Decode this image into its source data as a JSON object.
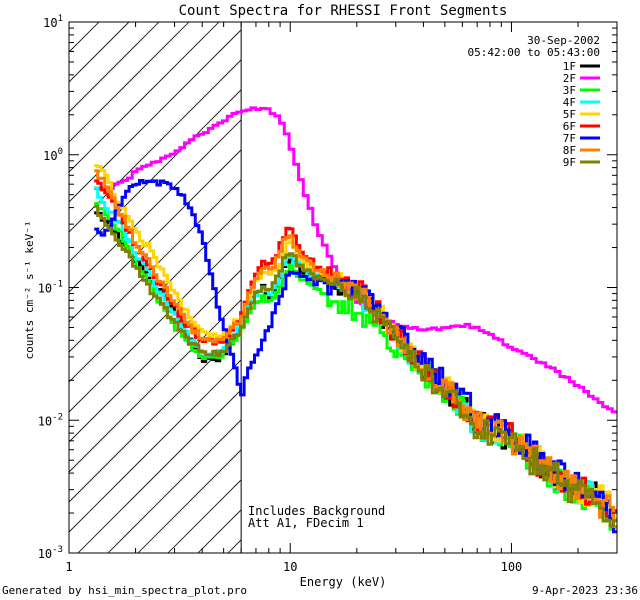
{
  "chart_data": {
    "type": "line",
    "title": "Count Spectra for RHESSI Front Segments",
    "xlabel": "Energy (keV)",
    "ylabel": "counts cm⁻² s⁻¹ keV⁻¹",
    "xscale": "log",
    "yscale": "log",
    "xlim": [
      1,
      300
    ],
    "ylim": [
      0.001,
      10
    ],
    "x_ticks": [
      {
        "value": 1,
        "label": "1"
      },
      {
        "value": 10,
        "label": "10"
      },
      {
        "value": 100,
        "label": "100"
      }
    ],
    "y_ticks": [
      {
        "value": 0.001,
        "base": "10",
        "exp": "-3"
      },
      {
        "value": 0.01,
        "base": "10",
        "exp": "-2"
      },
      {
        "value": 0.1,
        "base": "10",
        "exp": "-1"
      },
      {
        "value": 1,
        "base": "10",
        "exp": "0"
      },
      {
        "value": 10,
        "base": "10",
        "exp": "1"
      }
    ],
    "hatched_region": {
      "from_keV": 1,
      "to_keV": 6,
      "boundary_keV": 6
    },
    "date": "30-Sep-2002",
    "time_range": "05:42:00 to 05:43:00",
    "annotations": [
      "Includes Background",
      "Att A1, FDecim  1"
    ],
    "legend_position": "top-right",
    "series": [
      {
        "name": "1F",
        "color": "#000000",
        "style": "trace",
        "x": [
          1.3,
          1.45,
          1.6,
          1.8,
          2.0,
          2.3,
          2.6,
          3.0,
          3.5,
          4.0,
          4.5,
          5.0,
          5.5,
          6.0,
          6.5,
          7.0,
          7.5,
          8.0,
          8.5,
          9.0,
          9.5,
          10.0,
          10.5,
          11.5,
          13,
          15,
          17,
          20,
          25,
          30,
          40,
          50,
          60,
          70,
          80,
          100,
          120,
          150,
          200,
          250,
          280,
          300
        ],
        "y": [
          0.38,
          0.33,
          0.27,
          0.2,
          0.16,
          0.12,
          0.095,
          0.07,
          0.04,
          0.029,
          0.028,
          0.031,
          0.04,
          0.048,
          0.07,
          0.09,
          0.1,
          0.085,
          0.095,
          0.11,
          0.15,
          0.17,
          0.15,
          0.13,
          0.12,
          0.11,
          0.1,
          0.09,
          0.065,
          0.042,
          0.025,
          0.017,
          0.013,
          0.0095,
          0.0085,
          0.0072,
          0.0055,
          0.004,
          0.003,
          0.0025,
          0.002,
          0.0017
        ]
      },
      {
        "name": "2F",
        "color": "#ff00ff",
        "style": "smooth",
        "x": [
          1.3,
          1.45,
          1.6,
          1.8,
          2.0,
          2.3,
          2.6,
          3.0,
          3.5,
          4.0,
          4.5,
          5.0,
          5.5,
          6.0,
          6.5,
          7.0,
          7.5,
          8.0,
          8.5,
          9.0,
          9.5,
          10.0,
          10.5,
          11.5,
          13,
          15,
          17,
          20,
          25,
          30,
          40,
          50,
          60,
          70,
          80,
          100,
          120,
          150,
          200,
          250,
          280,
          300
        ],
        "y": [
          0.56,
          0.56,
          0.58,
          0.64,
          0.74,
          0.84,
          0.92,
          1.05,
          1.25,
          1.45,
          1.62,
          1.8,
          2.0,
          2.15,
          2.22,
          2.24,
          2.22,
          2.15,
          2.05,
          1.85,
          1.55,
          1.2,
          0.9,
          0.55,
          0.3,
          0.17,
          0.11,
          0.08,
          0.06,
          0.052,
          0.048,
          0.05,
          0.052,
          0.05,
          0.045,
          0.035,
          0.03,
          0.025,
          0.018,
          0.014,
          0.012,
          0.011
        ]
      },
      {
        "name": "3F",
        "color": "#00ff00",
        "style": "trace",
        "x": [
          1.3,
          1.45,
          1.6,
          1.8,
          2.0,
          2.3,
          2.6,
          3.0,
          3.5,
          4.0,
          4.5,
          5.0,
          5.5,
          6.0,
          6.5,
          7.0,
          7.5,
          8.0,
          8.5,
          9.0,
          9.5,
          10.0,
          10.5,
          11.5,
          13,
          15,
          17,
          20,
          25,
          30,
          40,
          50,
          60,
          70,
          80,
          100,
          120,
          150,
          200,
          250,
          280,
          300
        ],
        "y": [
          0.45,
          0.36,
          0.3,
          0.22,
          0.15,
          0.11,
          0.075,
          0.052,
          0.037,
          0.03,
          0.03,
          0.032,
          0.038,
          0.045,
          0.06,
          0.075,
          0.085,
          0.078,
          0.088,
          0.1,
          0.13,
          0.15,
          0.135,
          0.11,
          0.095,
          0.085,
          0.075,
          0.065,
          0.05,
          0.036,
          0.022,
          0.016,
          0.012,
          0.0092,
          0.0082,
          0.007,
          0.0054,
          0.0039,
          0.0029,
          0.0024,
          0.0019,
          0.0016
        ]
      },
      {
        "name": "4F",
        "color": "#00ffff",
        "style": "trace",
        "x": [
          1.3,
          1.45,
          1.6,
          1.8,
          2.0,
          2.3,
          2.6,
          3.0,
          3.5,
          4.0,
          4.5,
          5.0,
          5.5,
          6.0,
          6.5,
          7.0,
          7.5,
          8.0,
          8.5,
          9.0,
          9.5,
          10.0,
          10.5,
          11.5,
          13,
          15,
          17,
          20,
          25,
          30,
          40,
          50,
          60,
          70,
          80,
          100,
          120,
          150,
          200,
          250,
          280,
          300
        ],
        "y": [
          0.6,
          0.42,
          0.35,
          0.26,
          0.18,
          0.13,
          0.09,
          0.062,
          0.042,
          0.033,
          0.032,
          0.034,
          0.042,
          0.05,
          0.07,
          0.09,
          0.1,
          0.09,
          0.1,
          0.12,
          0.16,
          0.18,
          0.16,
          0.135,
          0.12,
          0.11,
          0.1,
          0.088,
          0.064,
          0.04,
          0.024,
          0.016,
          0.012,
          0.0092,
          0.0084,
          0.0072,
          0.0054,
          0.004,
          0.003,
          0.0024,
          0.002,
          0.0017
        ]
      },
      {
        "name": "5F",
        "color": "#ffd400",
        "style": "trace",
        "x": [
          1.3,
          1.45,
          1.6,
          1.8,
          2.0,
          2.3,
          2.6,
          3.0,
          3.5,
          4.0,
          4.5,
          5.0,
          5.5,
          6.0,
          6.5,
          7.0,
          7.5,
          8.0,
          8.5,
          9.0,
          9.5,
          10.0,
          10.5,
          11.5,
          13,
          15,
          17,
          20,
          25,
          30,
          40,
          50,
          60,
          70,
          80,
          100,
          120,
          150,
          200,
          250,
          280,
          300
        ],
        "y": [
          0.85,
          0.72,
          0.5,
          0.36,
          0.26,
          0.2,
          0.14,
          0.09,
          0.06,
          0.048,
          0.043,
          0.045,
          0.055,
          0.06,
          0.085,
          0.11,
          0.13,
          0.12,
          0.13,
          0.15,
          0.2,
          0.22,
          0.19,
          0.155,
          0.135,
          0.12,
          0.11,
          0.095,
          0.07,
          0.044,
          0.026,
          0.018,
          0.013,
          0.01,
          0.009,
          0.0078,
          0.0058,
          0.0043,
          0.0032,
          0.0026,
          0.0021,
          0.0018
        ]
      },
      {
        "name": "6F",
        "color": "#ff0000",
        "style": "trace",
        "x": [
          1.3,
          1.45,
          1.6,
          1.8,
          2.0,
          2.3,
          2.6,
          3.0,
          3.5,
          4.0,
          4.5,
          5.0,
          5.5,
          6.0,
          6.5,
          7.0,
          7.5,
          8.0,
          8.5,
          9.0,
          9.5,
          10.0,
          10.5,
          11.5,
          13,
          15,
          17,
          20,
          25,
          30,
          40,
          50,
          60,
          70,
          80,
          100,
          120,
          150,
          200,
          250,
          280,
          300
        ],
        "y": [
          0.65,
          0.55,
          0.42,
          0.3,
          0.21,
          0.15,
          0.105,
          0.072,
          0.05,
          0.04,
          0.038,
          0.04,
          0.05,
          0.058,
          0.09,
          0.13,
          0.16,
          0.15,
          0.17,
          0.2,
          0.26,
          0.29,
          0.24,
          0.18,
          0.15,
          0.13,
          0.115,
          0.1,
          0.07,
          0.045,
          0.026,
          0.018,
          0.013,
          0.0098,
          0.0088,
          0.0076,
          0.0056,
          0.0042,
          0.0031,
          0.0025,
          0.002,
          0.0018
        ]
      },
      {
        "name": "7F",
        "color": "#0000ff",
        "style": "trace",
        "x": [
          1.3,
          1.45,
          1.6,
          1.8,
          2.0,
          2.3,
          2.6,
          3.0,
          3.5,
          4.0,
          4.5,
          5.0,
          5.5,
          6.0,
          6.5,
          7.0,
          7.5,
          8.0,
          8.5,
          9.0,
          9.5,
          10.0,
          10.5,
          11.5,
          13,
          15,
          17,
          20,
          25,
          30,
          40,
          50,
          60,
          70,
          80,
          100,
          120,
          150,
          200,
          250,
          280,
          300
        ],
        "y": [
          0.28,
          0.24,
          0.34,
          0.5,
          0.6,
          0.64,
          0.62,
          0.55,
          0.42,
          0.25,
          0.1,
          0.05,
          0.03,
          0.015,
          0.025,
          0.03,
          0.04,
          0.05,
          0.065,
          0.08,
          0.11,
          0.14,
          0.13,
          0.115,
          0.11,
          0.105,
          0.1,
          0.095,
          0.075,
          0.05,
          0.03,
          0.02,
          0.015,
          0.011,
          0.0095,
          0.0082,
          0.006,
          0.0045,
          0.0033,
          0.0027,
          0.0022,
          0.0018
        ]
      },
      {
        "name": "8F",
        "color": "#ff8000",
        "style": "trace",
        "x": [
          1.3,
          1.45,
          1.6,
          1.8,
          2.0,
          2.3,
          2.6,
          3.0,
          3.5,
          4.0,
          4.5,
          5.0,
          5.5,
          6.0,
          6.5,
          7.0,
          7.5,
          8.0,
          8.5,
          9.0,
          9.5,
          10.0,
          10.5,
          11.5,
          13,
          15,
          17,
          20,
          25,
          30,
          40,
          50,
          60,
          70,
          80,
          100,
          120,
          150,
          200,
          250,
          280,
          300
        ],
        "y": [
          0.78,
          0.6,
          0.44,
          0.31,
          0.22,
          0.16,
          0.11,
          0.075,
          0.052,
          0.041,
          0.039,
          0.041,
          0.05,
          0.058,
          0.085,
          0.12,
          0.145,
          0.13,
          0.15,
          0.18,
          0.23,
          0.25,
          0.21,
          0.165,
          0.14,
          0.125,
          0.11,
          0.097,
          0.069,
          0.044,
          0.025,
          0.0175,
          0.0128,
          0.0096,
          0.0086,
          0.0074,
          0.0055,
          0.0041,
          0.003,
          0.0025,
          0.002,
          0.0017
        ]
      },
      {
        "name": "9F",
        "color": "#808000",
        "style": "trace",
        "x": [
          1.3,
          1.45,
          1.6,
          1.8,
          2.0,
          2.3,
          2.6,
          3.0,
          3.5,
          4.0,
          4.5,
          5.0,
          5.5,
          6.0,
          6.5,
          7.0,
          7.5,
          8.0,
          8.5,
          9.0,
          9.5,
          10.0,
          10.5,
          11.5,
          13,
          15,
          17,
          20,
          25,
          30,
          40,
          50,
          60,
          70,
          80,
          100,
          120,
          150,
          200,
          250,
          280,
          300
        ],
        "y": [
          0.42,
          0.32,
          0.25,
          0.19,
          0.14,
          0.1,
          0.075,
          0.055,
          0.04,
          0.033,
          0.031,
          0.033,
          0.04,
          0.047,
          0.068,
          0.09,
          0.105,
          0.095,
          0.11,
          0.13,
          0.17,
          0.19,
          0.165,
          0.135,
          0.12,
          0.108,
          0.098,
          0.087,
          0.062,
          0.04,
          0.023,
          0.016,
          0.012,
          0.009,
          0.0081,
          0.007,
          0.0052,
          0.0039,
          0.0029,
          0.0024,
          0.0019,
          0.0016
        ]
      }
    ]
  },
  "footer": {
    "generator": "Generated by hsi_min_spectra_plot.pro",
    "timestamp": "9-Apr-2023 23:36"
  }
}
